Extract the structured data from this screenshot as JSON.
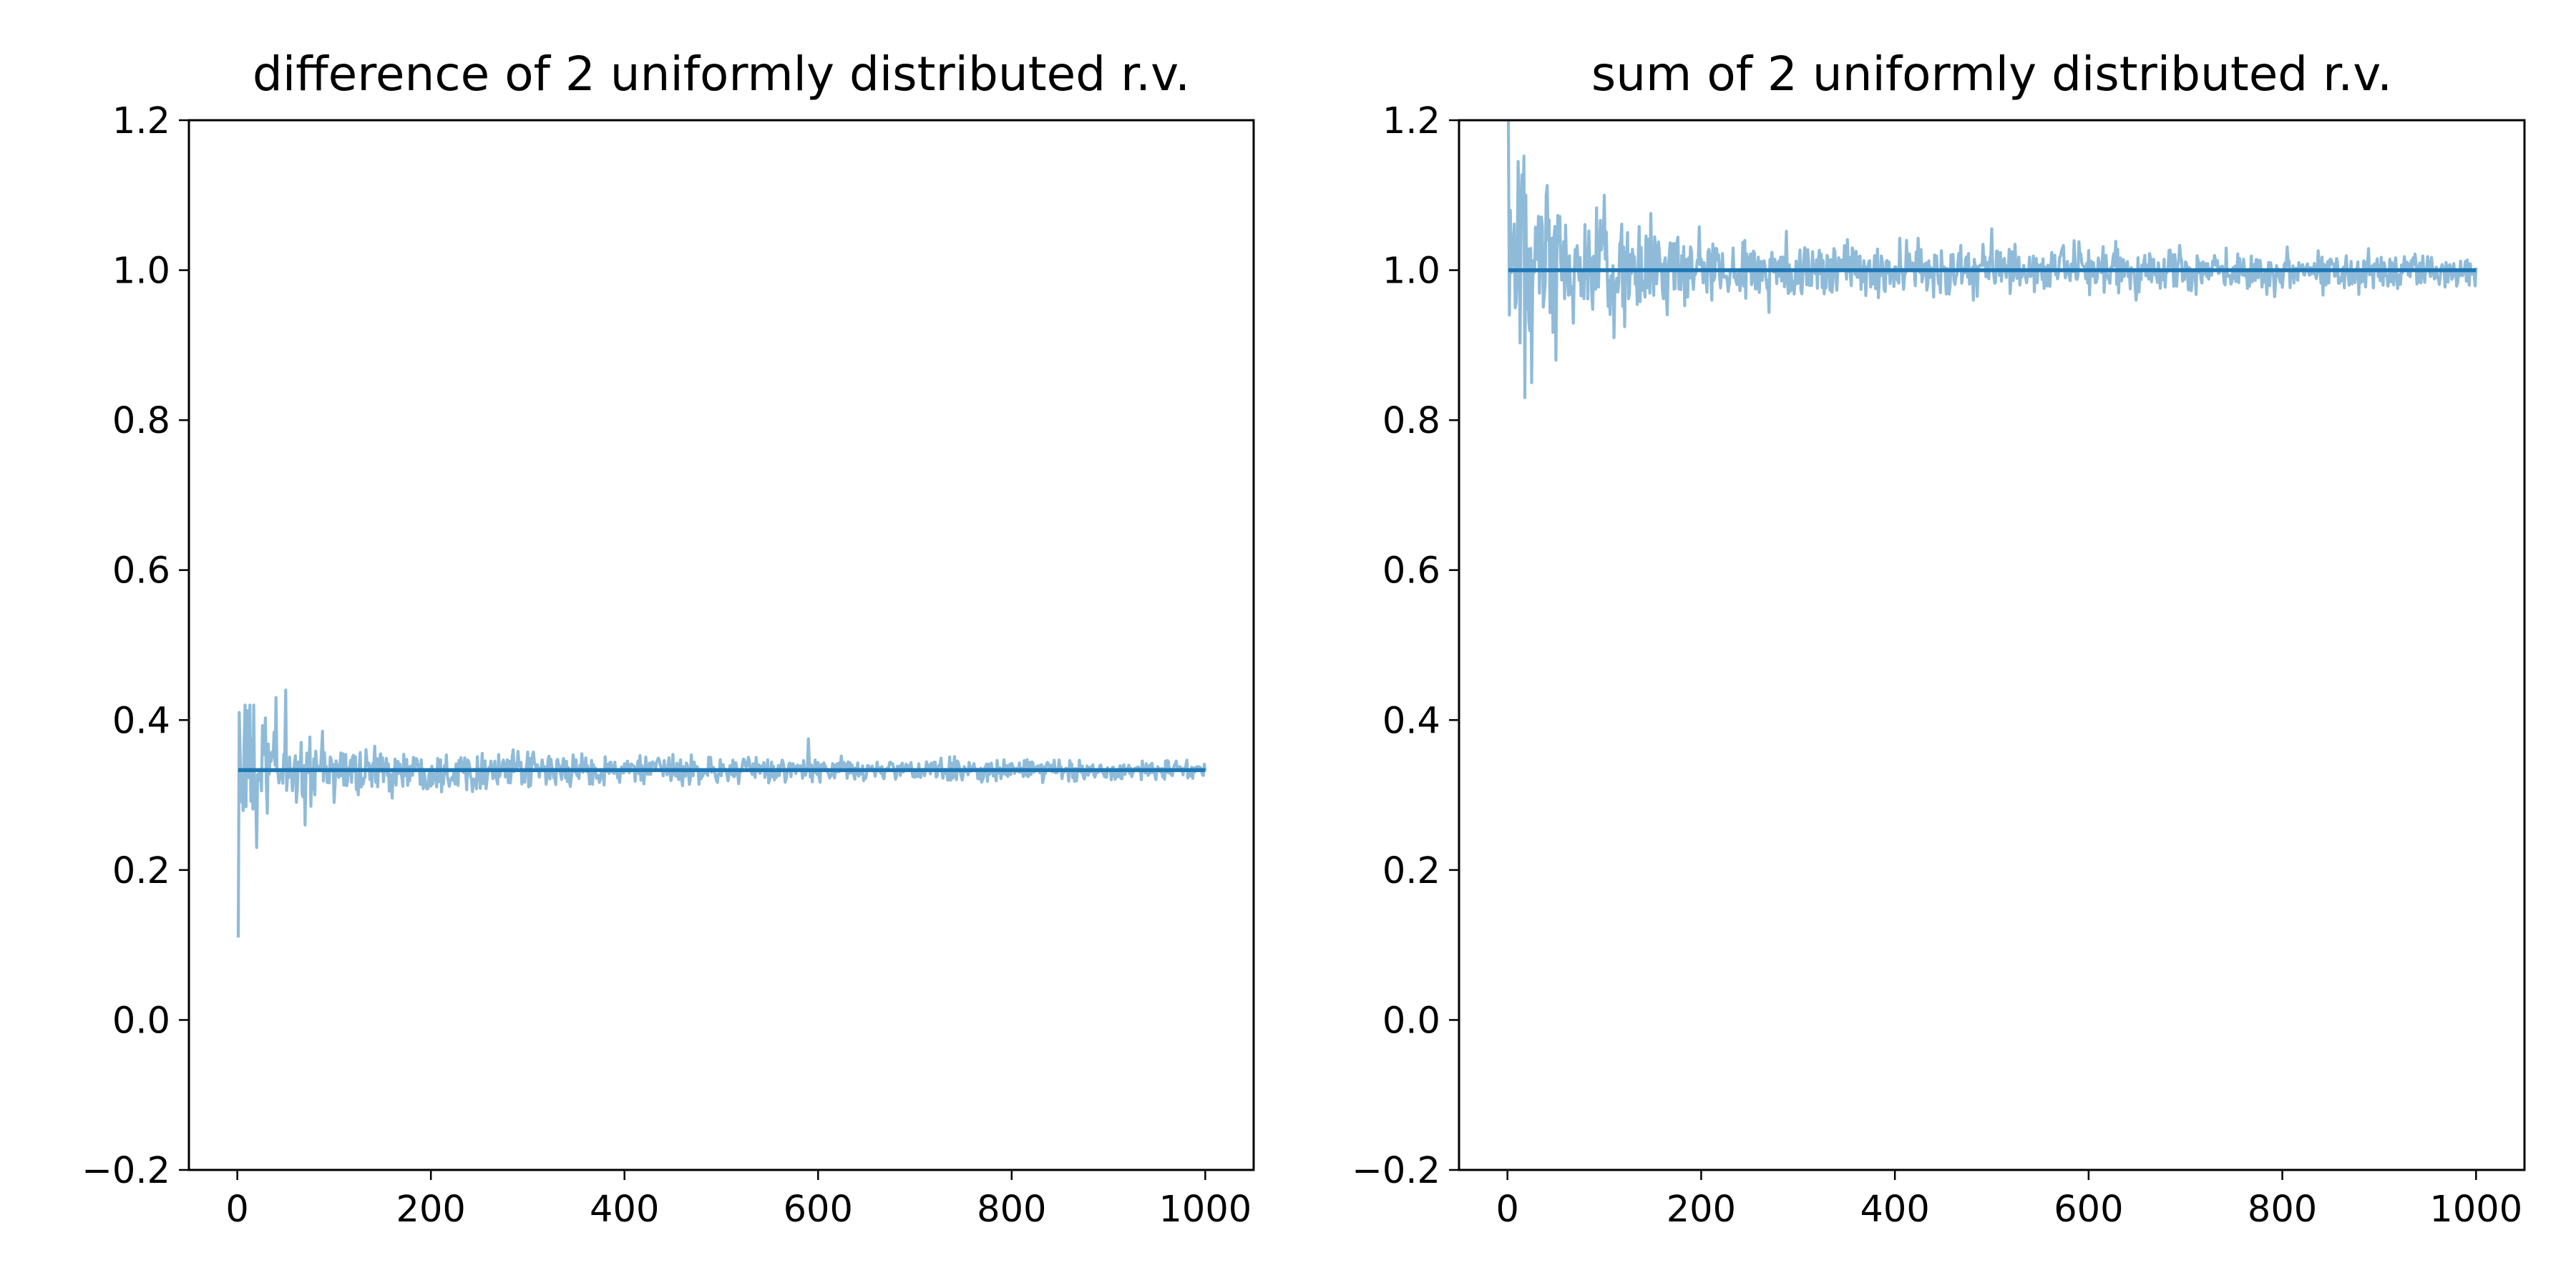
{
  "chart_data": [
    {
      "type": "line",
      "title": "difference of 2 uniformly distributed r.v.",
      "xlabel": "",
      "ylabel": "",
      "xlim": [
        -50,
        1050
      ],
      "ylim": [
        -0.2,
        1.2
      ],
      "x_ticks": [
        0,
        200,
        400,
        600,
        800,
        1000
      ],
      "y_ticks": [
        -0.2,
        0.0,
        0.2,
        0.4,
        0.6,
        0.8,
        1.0,
        1.2
      ],
      "x_tick_labels": [
        "0",
        "200",
        "400",
        "600",
        "800",
        "1000"
      ],
      "y_tick_labels": [
        "−0.2",
        "0.0",
        "0.2",
        "0.4",
        "0.6",
        "0.8",
        "1.0",
        "1.2"
      ],
      "grid": false,
      "legend": "none",
      "series": [
        {
          "role": "simulated-estimate",
          "color": "#8fbbd9",
          "x_start": 1,
          "x_end": 1000,
          "approx_center": 0.333,
          "spread_envelope": [
            [
              1,
              0.13
            ],
            [
              10,
              0.09
            ],
            [
              25,
              0.07
            ],
            [
              50,
              0.05
            ],
            [
              100,
              0.035
            ],
            [
              200,
              0.025
            ],
            [
              400,
              0.018
            ],
            [
              600,
              0.015
            ],
            [
              1000,
              0.012
            ]
          ],
          "notable_points": [
            [
              1,
              0.11
            ],
            [
              2,
              0.41
            ],
            [
              8,
              0.42
            ],
            [
              20,
              0.23
            ],
            [
              40,
              0.43
            ],
            [
              50,
              0.44
            ],
            [
              70,
              0.26
            ],
            [
              100,
              0.29
            ],
            [
              590,
              0.375
            ]
          ]
        },
        {
          "role": "theoretical-value",
          "color": "#1f77b4",
          "x": [
            1,
            1000
          ],
          "y": [
            0.3333,
            0.3333
          ]
        }
      ]
    },
    {
      "type": "line",
      "title": "sum of 2 uniformly distributed r.v.",
      "xlabel": "",
      "ylabel": "",
      "xlim": [
        -50,
        1050
      ],
      "ylim": [
        -0.2,
        1.2
      ],
      "x_ticks": [
        0,
        200,
        400,
        600,
        800,
        1000
      ],
      "y_ticks": [
        -0.2,
        0.0,
        0.2,
        0.4,
        0.6,
        0.8,
        1.0,
        1.2
      ],
      "x_tick_labels": [
        "0",
        "200",
        "400",
        "600",
        "800",
        "1000"
      ],
      "y_tick_labels": [
        "−0.2",
        "0.0",
        "0.2",
        "0.4",
        "0.6",
        "0.8",
        "1.0",
        "1.2"
      ],
      "grid": false,
      "legend": "none",
      "series": [
        {
          "role": "simulated-estimate",
          "color": "#8fbbd9",
          "x_start": 1,
          "x_end": 1000,
          "approx_center": 1.0,
          "spread_envelope": [
            [
              1,
              0.25
            ],
            [
              10,
              0.14
            ],
            [
              25,
              0.11
            ],
            [
              50,
              0.09
            ],
            [
              100,
              0.065
            ],
            [
              200,
              0.045
            ],
            [
              400,
              0.035
            ],
            [
              600,
              0.03
            ],
            [
              1000,
              0.022
            ]
          ],
          "notable_points": [
            [
              1,
              1.2
            ],
            [
              2,
              0.94
            ],
            [
              18,
              0.83
            ],
            [
              25,
              0.85
            ],
            [
              40,
              1.1
            ],
            [
              50,
              0.88
            ],
            [
              100,
              1.1
            ],
            [
              110,
              0.91
            ],
            [
              500,
              1.055
            ]
          ]
        },
        {
          "role": "theoretical-value",
          "color": "#1f77b4",
          "x": [
            1,
            1000
          ],
          "y": [
            1.0,
            1.0
          ]
        }
      ]
    }
  ]
}
